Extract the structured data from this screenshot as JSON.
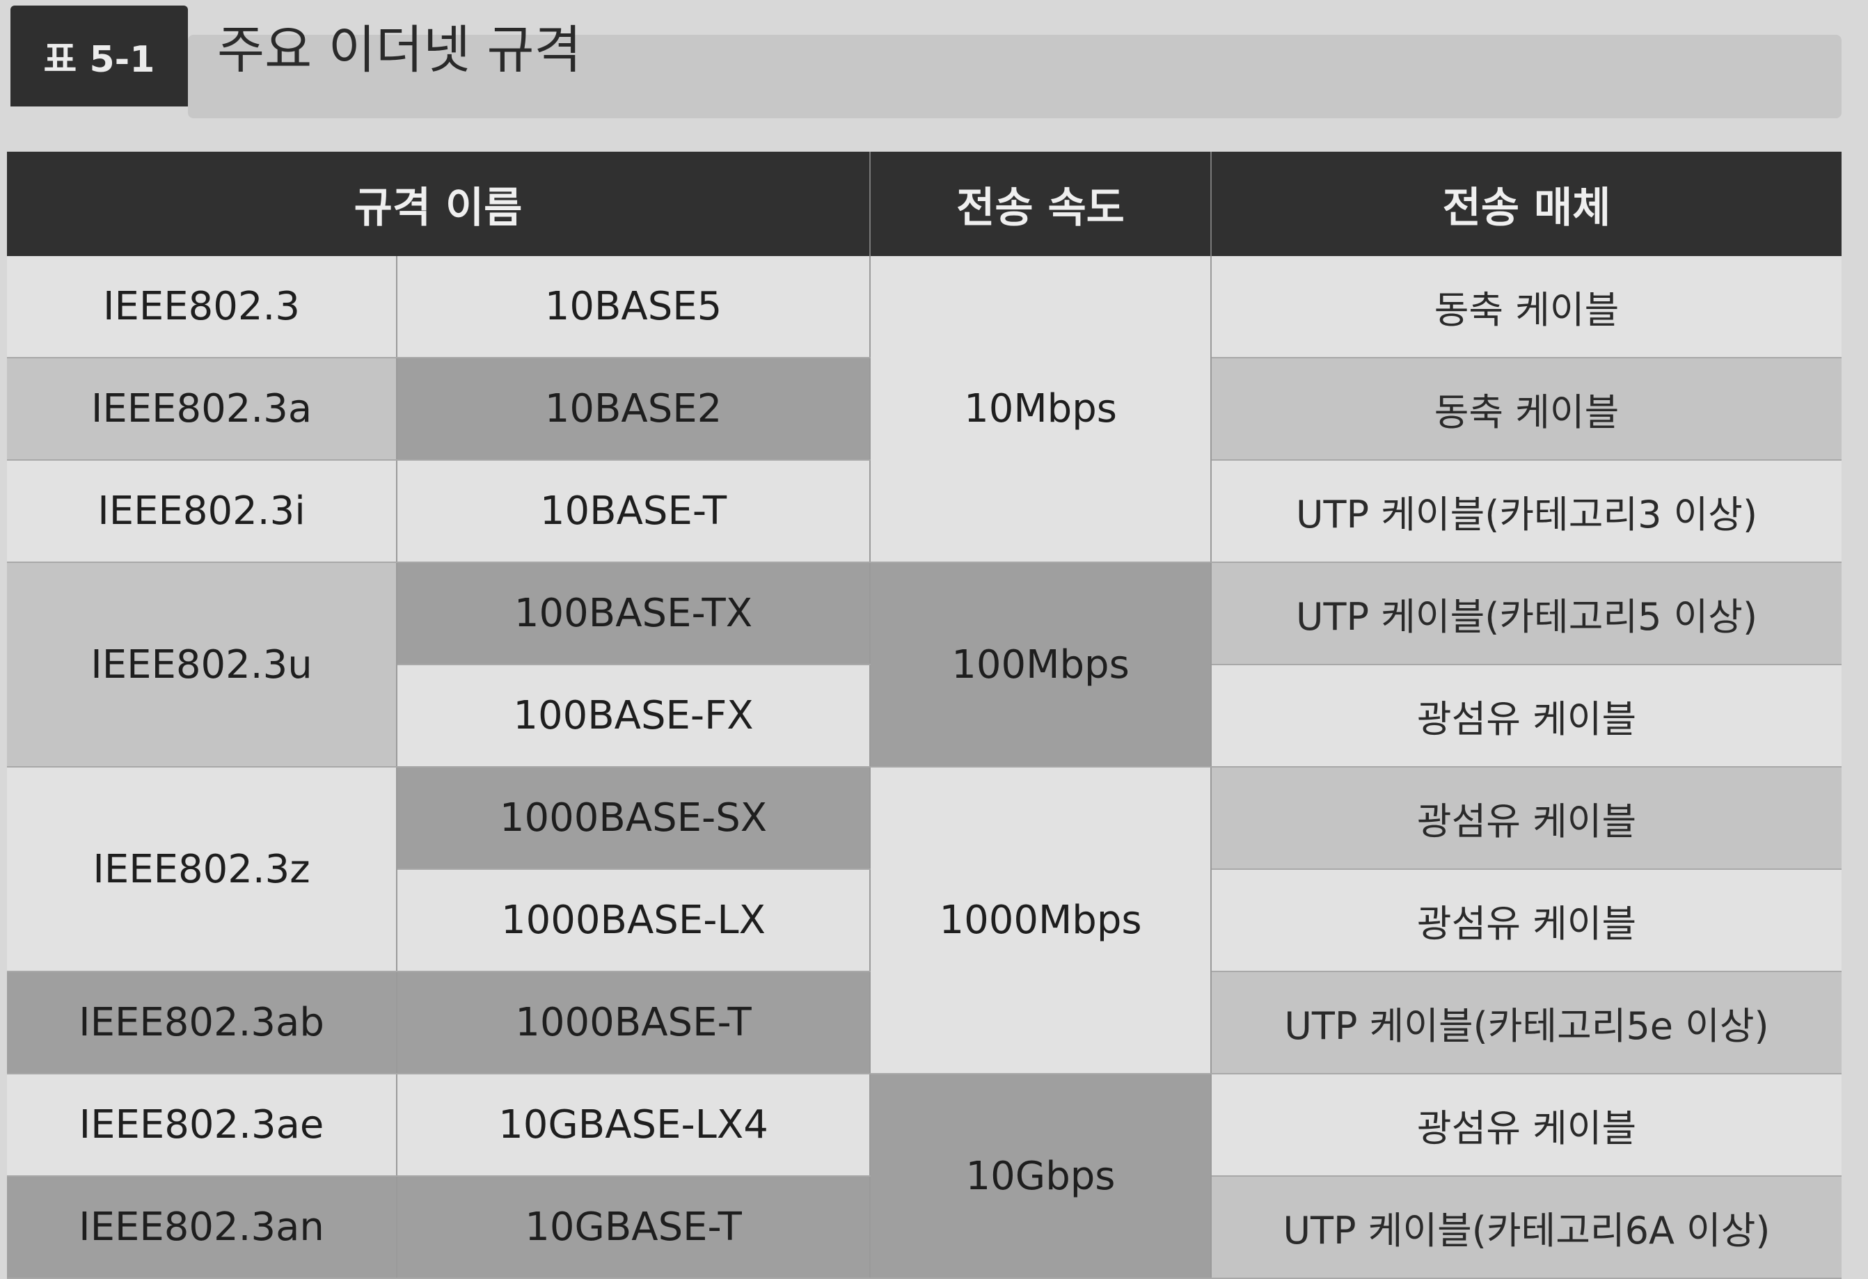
{
  "caption": {
    "tag": "표 5-1",
    "title": "주요 이더넷 규격"
  },
  "headers": {
    "name": "규격 이름",
    "speed": "전송 속도",
    "medium": "전송 매체"
  },
  "standards": [
    {
      "name": "IEEE802.3",
      "specs": [
        "10BASE5"
      ]
    },
    {
      "name": "IEEE802.3a",
      "specs": [
        "10BASE2"
      ]
    },
    {
      "name": "IEEE802.3i",
      "specs": [
        "10BASE-T"
      ]
    },
    {
      "name": "IEEE802.3u",
      "specs": [
        "100BASE-TX",
        "100BASE-FX"
      ]
    },
    {
      "name": "IEEE802.3z",
      "specs": [
        "1000BASE-SX",
        "1000BASE-LX"
      ]
    },
    {
      "name": "IEEE802.3ab",
      "specs": [
        "1000BASE-T"
      ]
    },
    {
      "name": "IEEE802.3ae",
      "specs": [
        "10GBASE-LX4"
      ]
    },
    {
      "name": "IEEE802.3an",
      "specs": [
        "10GBASE-T"
      ]
    }
  ],
  "speeds": [
    "10Mbps",
    "100Mbps",
    "1000Mbps",
    "10Gbps"
  ],
  "media": [
    "동축 케이블",
    "동축 케이블",
    "UTP 케이블(카테고리3 이상)",
    "UTP 케이블(카테고리5 이상)",
    "광섬유 케이블",
    "광섬유 케이블",
    "광섬유 케이블",
    "UTP 케이블(카테고리5e 이상)",
    "광섬유 케이블",
    "UTP 케이블(카테고리6A 이상)"
  ]
}
